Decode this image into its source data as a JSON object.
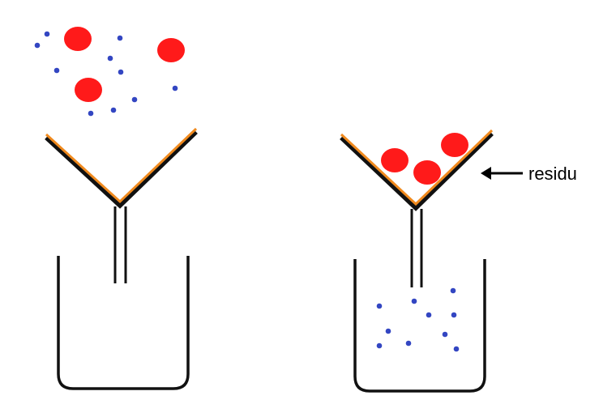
{
  "diagram": {
    "residue_label": "residu"
  },
  "colors": {
    "funnel_filter": "#f08a1e",
    "funnel_outline": "#111111",
    "beaker": "#111111",
    "large_particle": "#ff1a1a",
    "small_particle": "#3346c2",
    "arrow": "#000000"
  }
}
